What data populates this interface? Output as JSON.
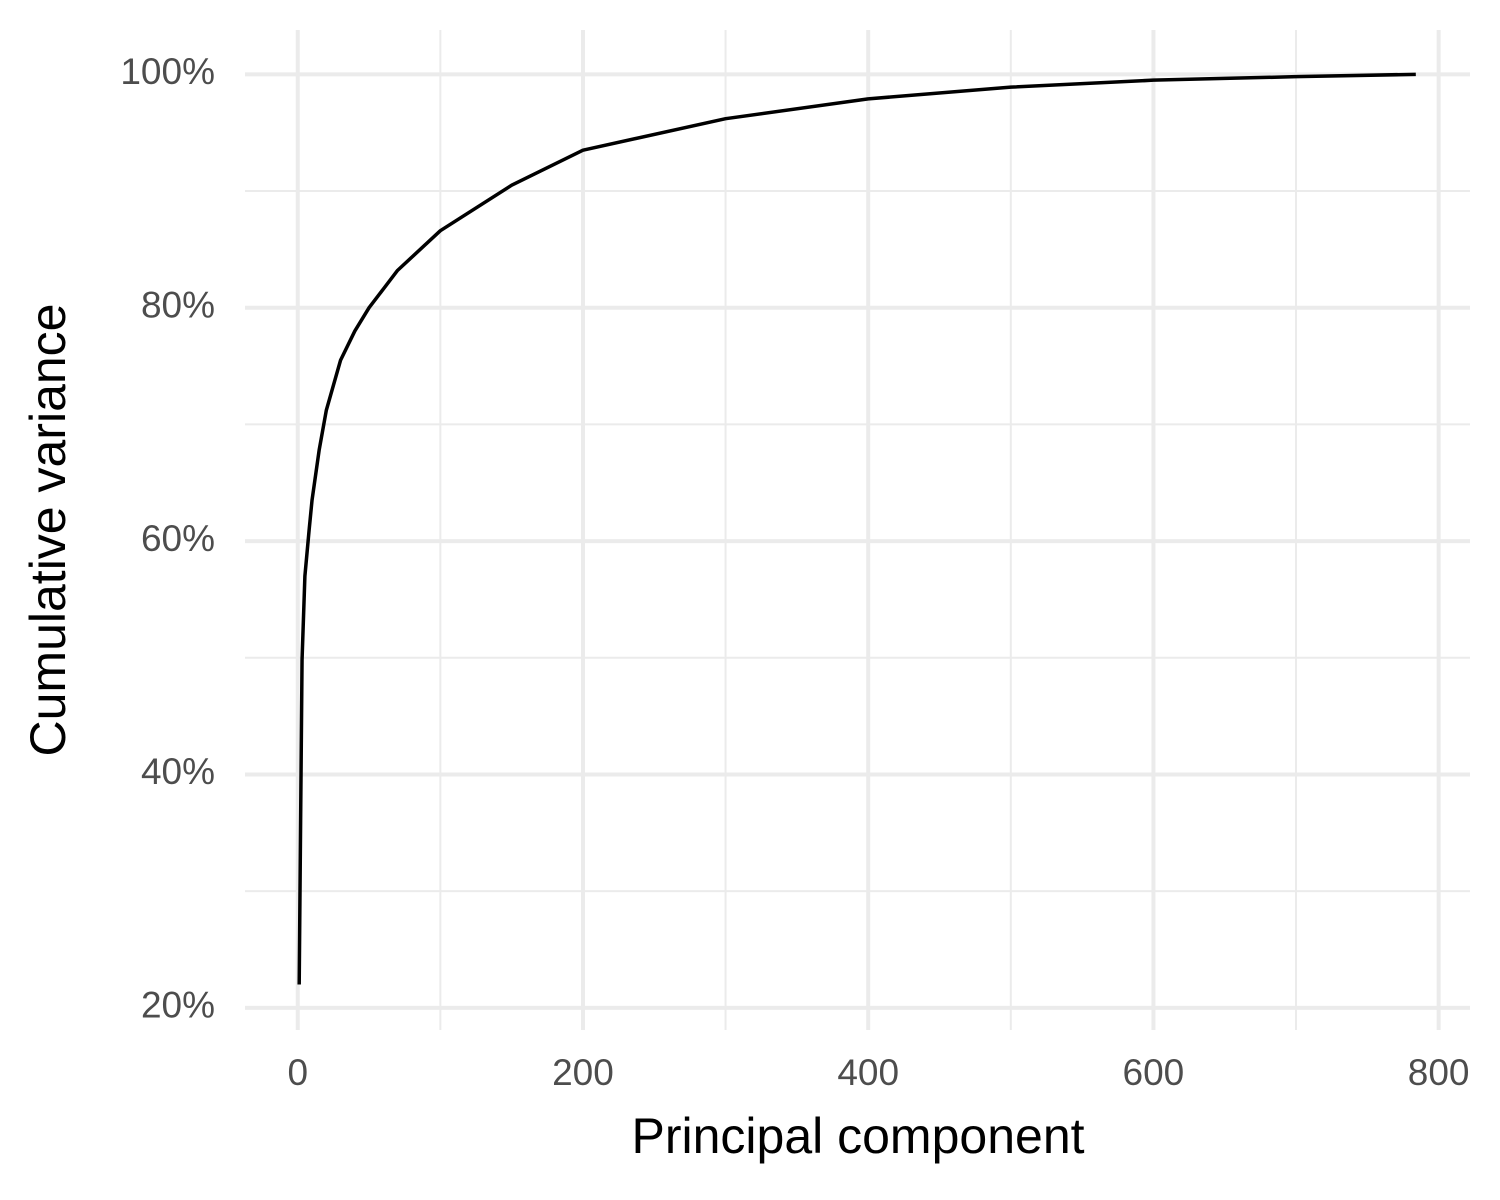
{
  "chart_data": {
    "type": "line",
    "x_label": "Principal component",
    "y_label": "Cumulative variance",
    "x": [
      1,
      2,
      3,
      5,
      8,
      10,
      15,
      20,
      30,
      40,
      50,
      70,
      100,
      150,
      200,
      300,
      400,
      500,
      600,
      700,
      784
    ],
    "series": [
      {
        "color": "#000000",
        "values": [
          22,
          36,
          49.8,
          57,
          61,
          63.5,
          67.8,
          71.2,
          75.5,
          78,
          80,
          83.2,
          86.6,
          90.5,
          93.5,
          96.2,
          97.9,
          98.9,
          99.5,
          99.8,
          100
        ]
      }
    ],
    "xlim": [
      -37,
      822
    ],
    "ylim": [
      18.1,
      103.8
    ],
    "xticks": [
      0,
      200,
      400,
      600,
      800
    ],
    "yticks": [
      {
        "value": 20,
        "label": "20%"
      },
      {
        "value": 40,
        "label": "40%"
      },
      {
        "value": 60,
        "label": "60%"
      },
      {
        "value": 80,
        "label": "80%"
      },
      {
        "value": 100,
        "label": "100%"
      }
    ],
    "x_minor_ticks": [
      100,
      300,
      500,
      700
    ],
    "y_minor_ticks": [
      30,
      50,
      70,
      90
    ],
    "grid": true,
    "grid_color": "#ebebeb"
  }
}
